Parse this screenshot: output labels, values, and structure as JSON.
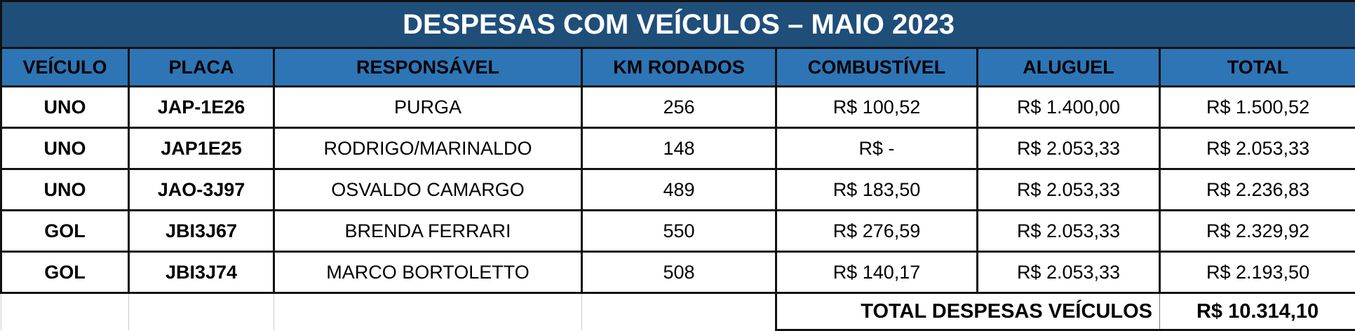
{
  "title": "DESPESAS COM VEÍCULOS – MAIO 2023",
  "colors": {
    "title_bg": "#1f4e79",
    "header_bg": "#2e75b6"
  },
  "headers": [
    "VEÍCULO",
    "PLACA",
    "RESPONSÁVEL",
    "KM RODADOS",
    "COMBUSTÍVEL",
    "ALUGUEL",
    "TOTAL"
  ],
  "rows": [
    [
      "UNO",
      "JAP-1E26",
      "PURGA",
      "256",
      "R$ 100,52",
      "R$ 1.400,00",
      "R$ 1.500,52"
    ],
    [
      "UNO",
      "JAP1E25",
      "RODRIGO/MARINALDO",
      "148",
      "R$ -",
      "R$ 2.053,33",
      "R$ 2.053,33"
    ],
    [
      "UNO",
      "JAO-3J97",
      "OSVALDO CAMARGO",
      "489",
      "R$ 183,50",
      "R$ 2.053,33",
      "R$ 2.236,83"
    ],
    [
      "GOL",
      "JBI3J67",
      "BRENDA FERRARI",
      "550",
      "R$ 276,59",
      "R$ 2.053,33",
      "R$ 2.329,92"
    ],
    [
      "GOL",
      "JBI3J74",
      "MARCO BORTOLETTO",
      "508",
      "R$ 140,17",
      "R$ 2.053,33",
      "R$ 2.193,50"
    ]
  ],
  "total": {
    "label": "TOTAL DESPESAS VEÍCULOS",
    "value": "R$ 10.314,10"
  }
}
